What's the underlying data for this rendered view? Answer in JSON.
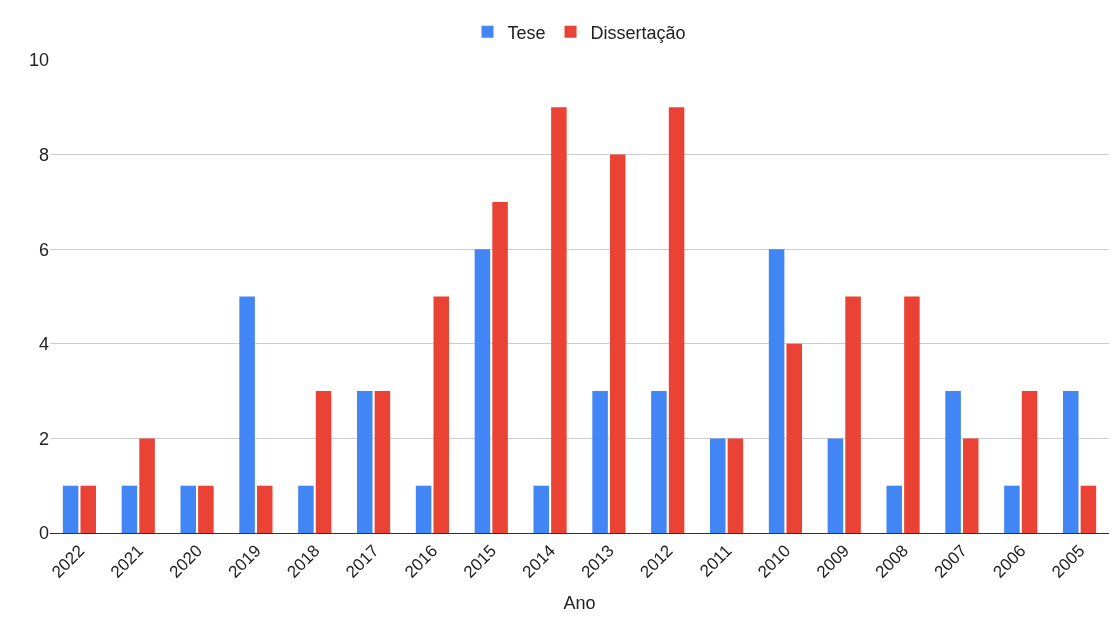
{
  "chart_data": {
    "type": "bar",
    "xlabel": "Ano",
    "categories": [
      "2022",
      "2021",
      "2020",
      "2019",
      "2018",
      "2017",
      "2016",
      "2015",
      "2014",
      "2013",
      "2012",
      "2011",
      "2010",
      "2009",
      "2008",
      "2007",
      "2006",
      "2005"
    ],
    "series": [
      {
        "name": "Tese",
        "color": "#4285f4",
        "values": [
          1,
          1,
          1,
          5,
          1,
          3,
          1,
          6,
          1,
          3,
          3,
          2,
          6,
          2,
          1,
          3,
          1,
          3
        ]
      },
      {
        "name": "Dissertação",
        "color": "#ea4335",
        "values": [
          1,
          2,
          1,
          1,
          3,
          3,
          5,
          7,
          9,
          8,
          9,
          2,
          4,
          5,
          5,
          2,
          3,
          1
        ]
      }
    ],
    "ylim": [
      0,
      10
    ],
    "yticks": [
      0,
      2,
      4,
      6,
      8,
      10
    ],
    "grid": "y",
    "legend": "top"
  }
}
